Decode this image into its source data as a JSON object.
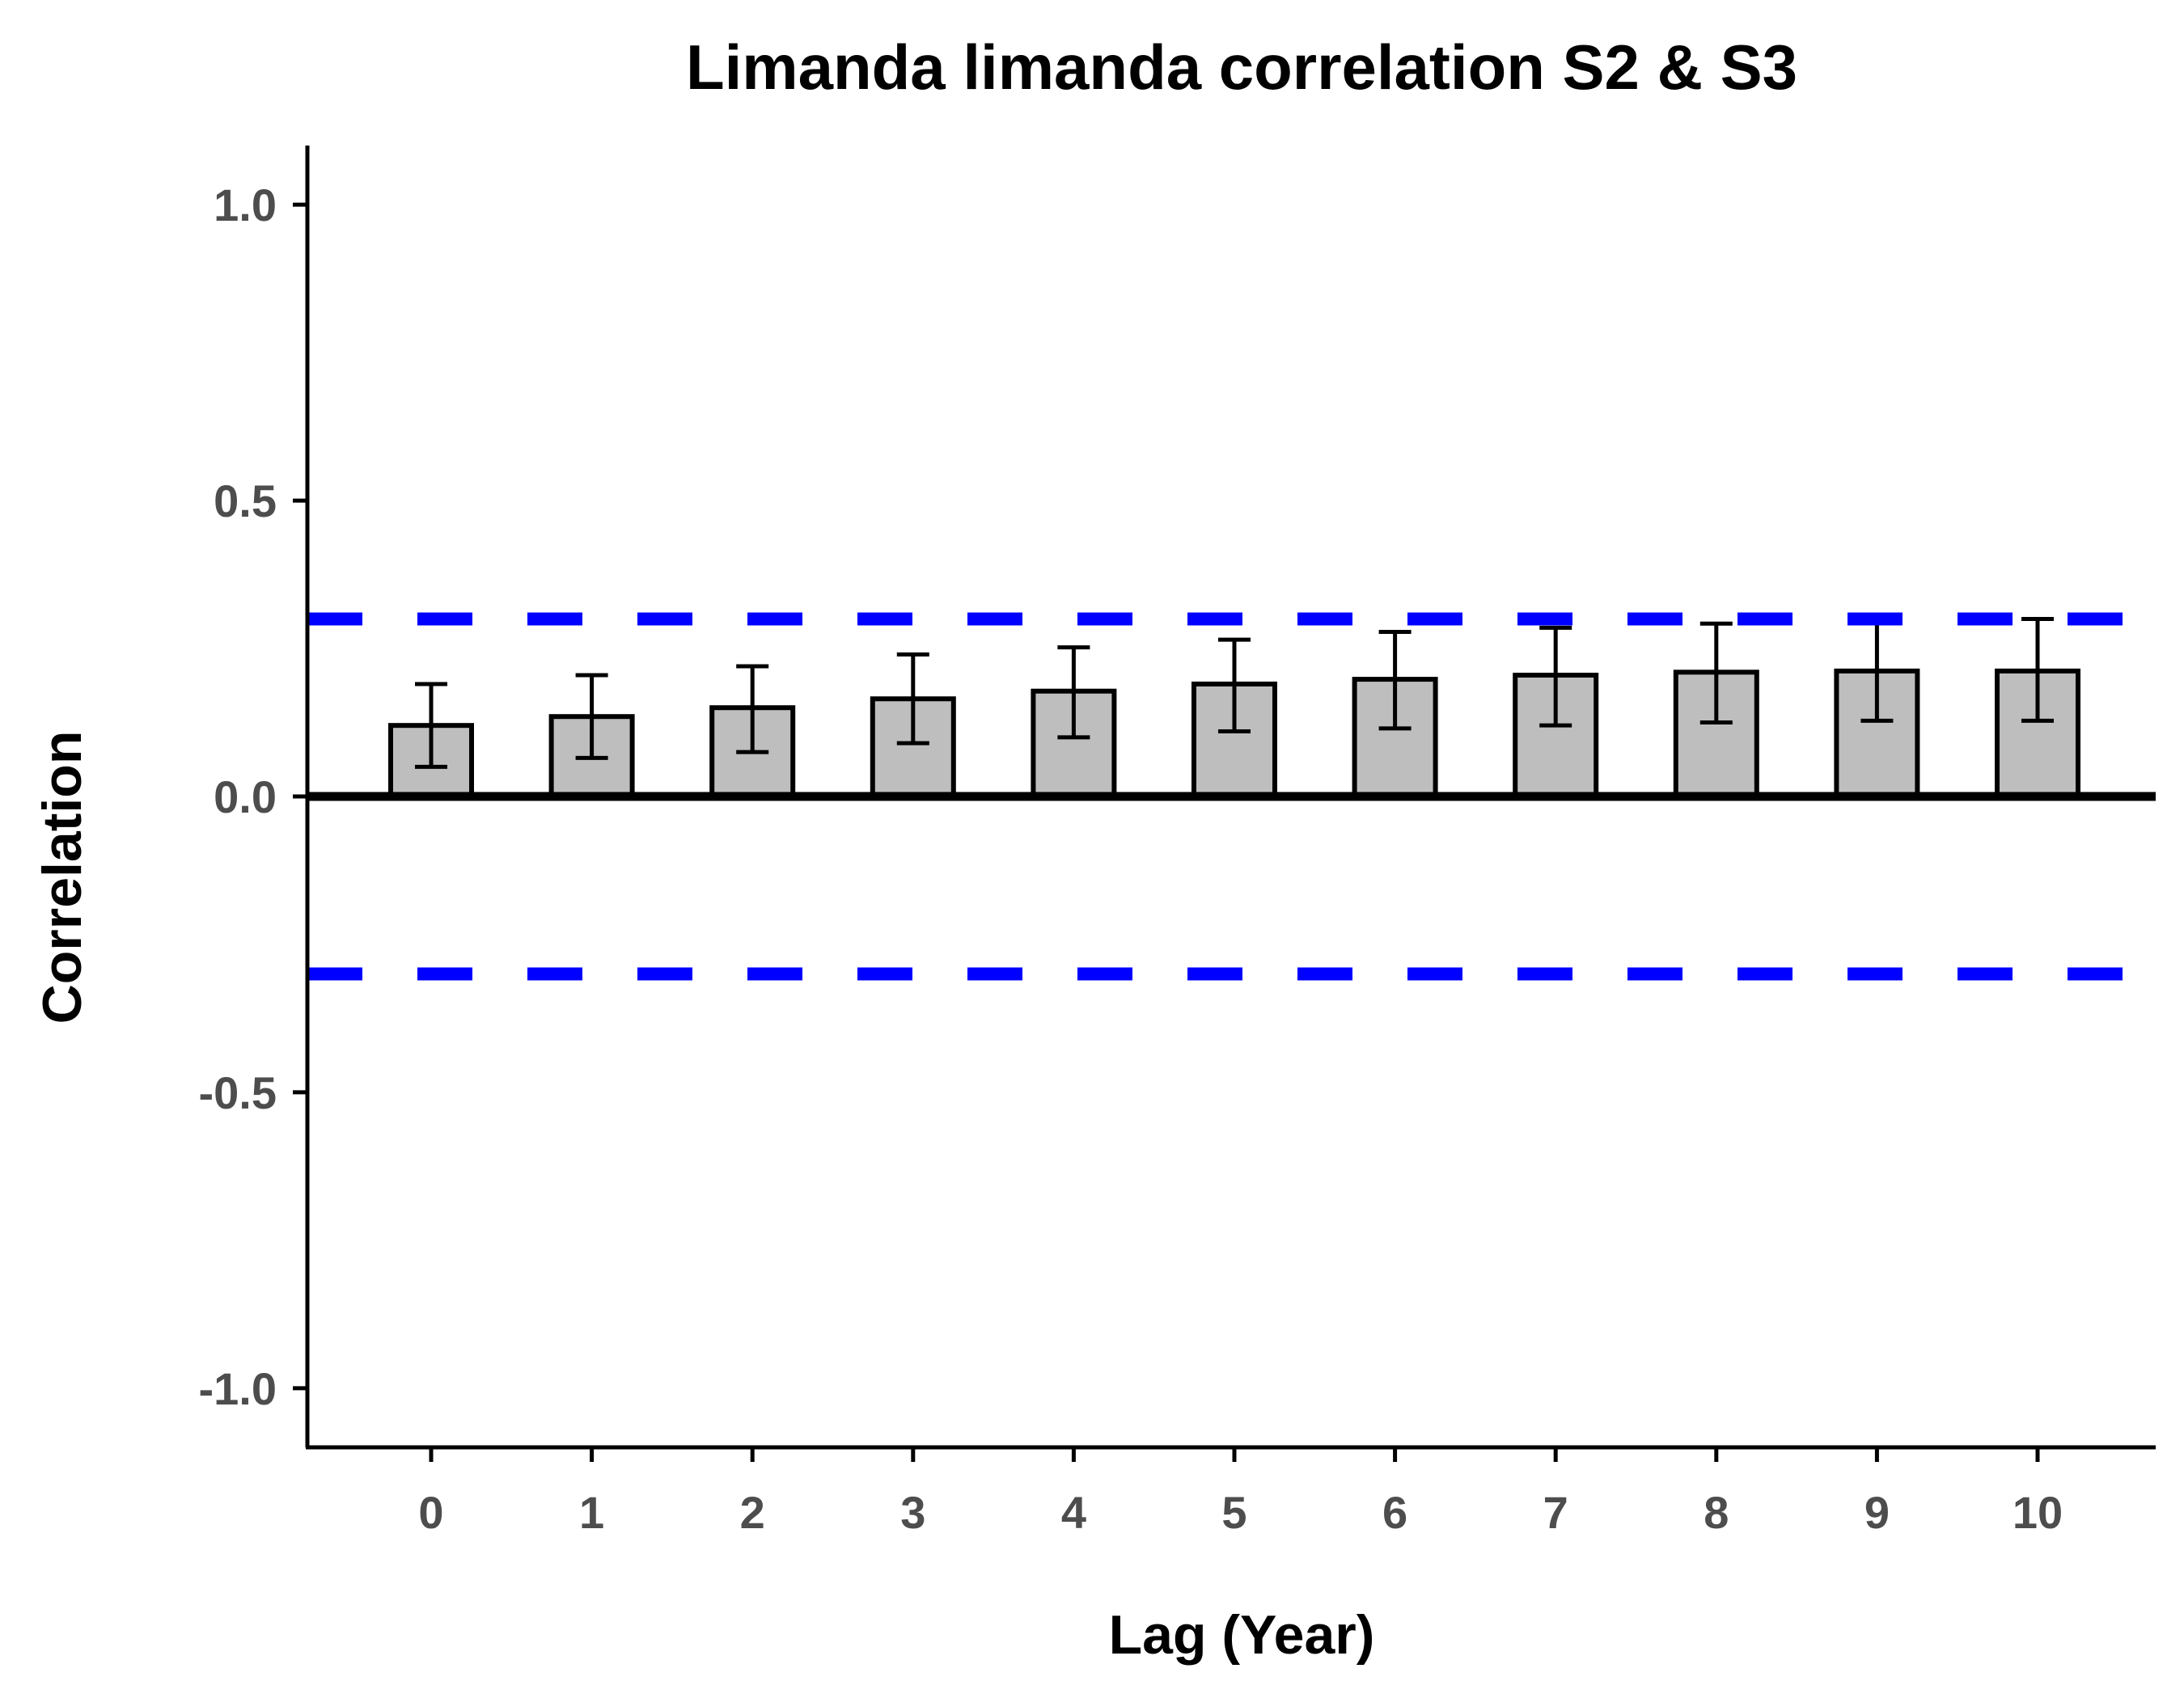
{
  "chart_data": {
    "type": "bar",
    "title": "Limanda limanda correlation S2 & S3",
    "xlabel": "Lag (Year)",
    "ylabel": "Correlation",
    "categories": [
      "0",
      "1",
      "2",
      "3",
      "4",
      "5",
      "6",
      "7",
      "8",
      "9",
      "10"
    ],
    "values": [
      0.12,
      0.135,
      0.15,
      0.165,
      0.178,
      0.19,
      0.198,
      0.205,
      0.21,
      0.212,
      0.212
    ],
    "error_lower": [
      0.05,
      0.065,
      0.075,
      0.09,
      0.1,
      0.11,
      0.115,
      0.12,
      0.125,
      0.128,
      0.128
    ],
    "error_upper": [
      0.19,
      0.205,
      0.22,
      0.24,
      0.252,
      0.265,
      0.278,
      0.285,
      0.292,
      0.3,
      0.3
    ],
    "ylim": [
      -1.1,
      1.1
    ],
    "yticks": [
      -1.0,
      -0.5,
      0.0,
      0.5,
      1.0
    ],
    "ytick_labels": [
      "-1.0",
      "-0.5",
      "0.0",
      "0.5",
      "1.0"
    ],
    "reference_lines": [
      {
        "y": 0.3,
        "style": "dashed",
        "color": "#0000ff"
      },
      {
        "y": -0.3,
        "style": "dashed",
        "color": "#0000ff"
      },
      {
        "y": 0.0,
        "style": "solid",
        "color": "#000000"
      }
    ],
    "bar_fill": "#bebebe",
    "bar_stroke": "#000000",
    "grid": false,
    "legend": "none"
  }
}
